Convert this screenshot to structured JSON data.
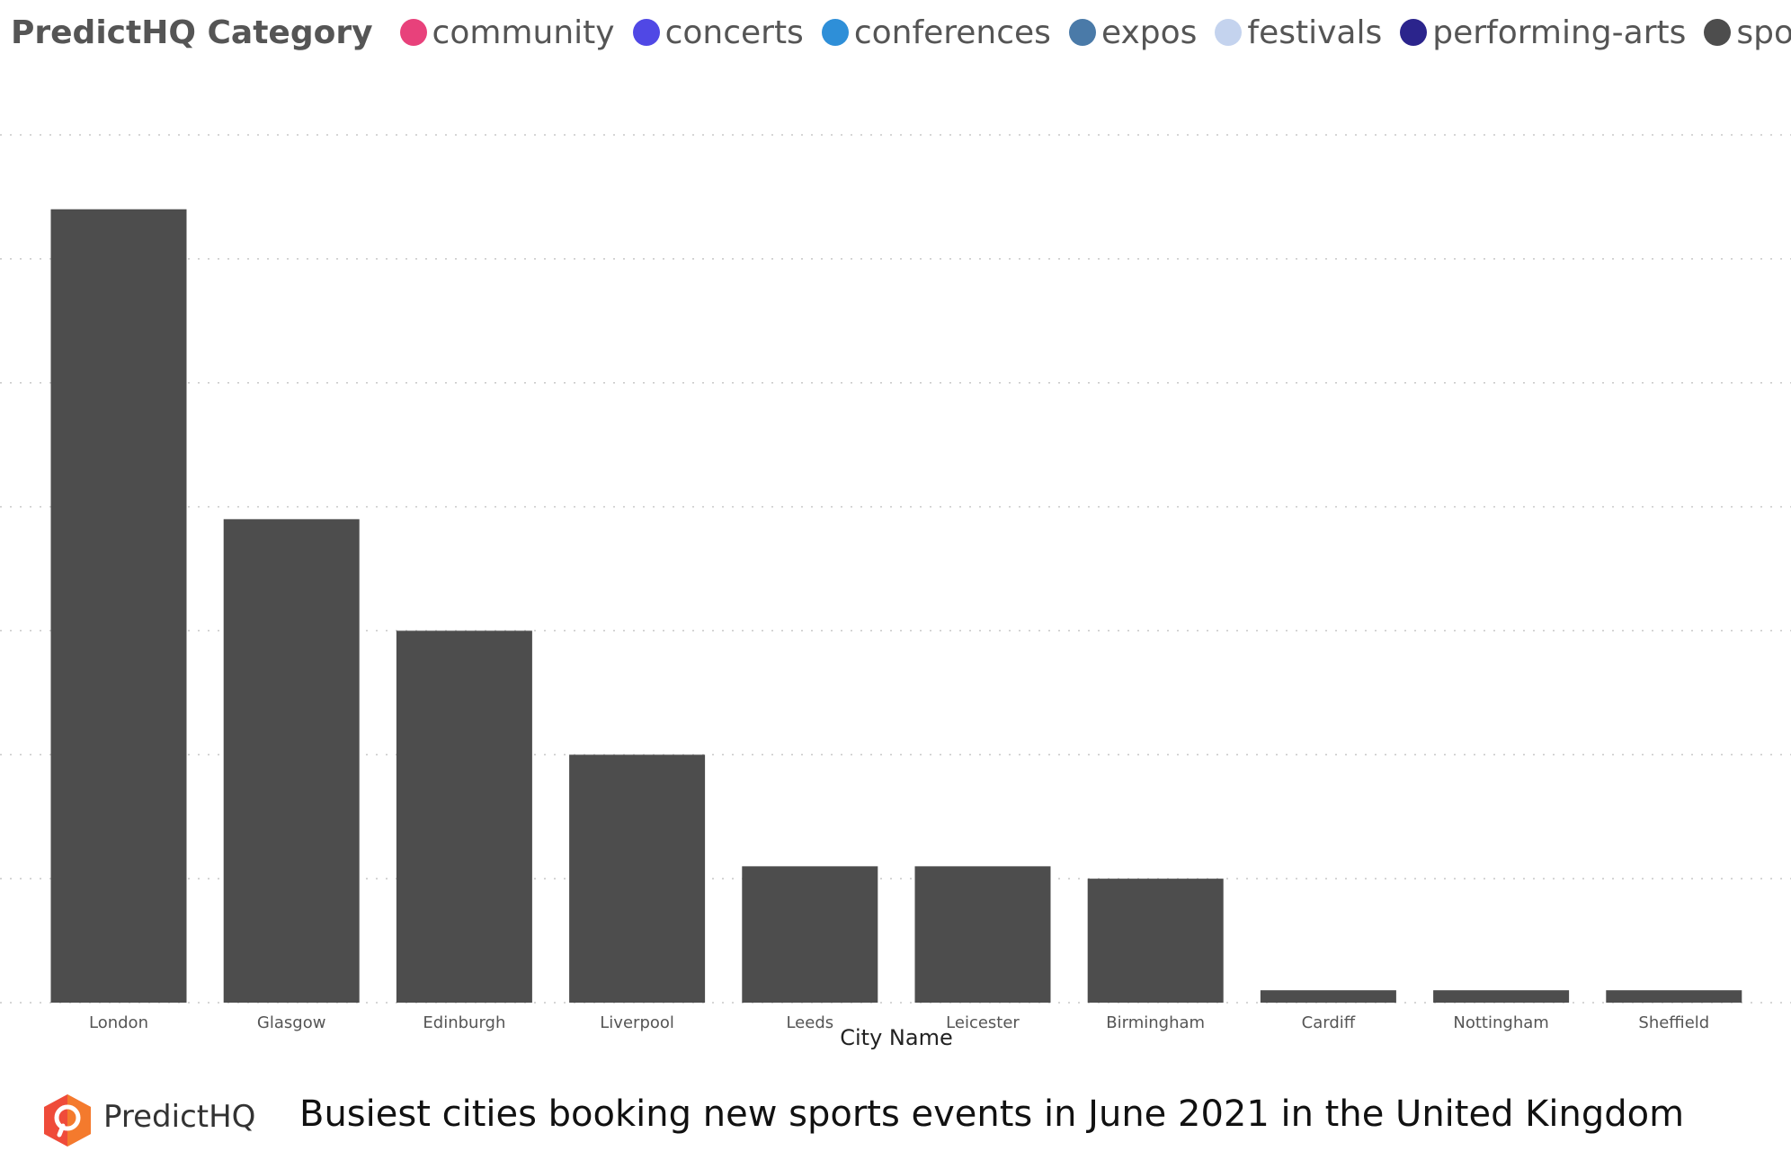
{
  "legend": {
    "title": "PredictHQ Category",
    "items": [
      {
        "label": "community",
        "color": "#e8417b"
      },
      {
        "label": "concerts",
        "color": "#5048e5"
      },
      {
        "label": "conferences",
        "color": "#2e8fd8"
      },
      {
        "label": "expos",
        "color": "#4a7aa8"
      },
      {
        "label": "festivals",
        "color": "#c4d3ee"
      },
      {
        "label": "performing-arts",
        "color": "#2b248c"
      },
      {
        "label": "sports",
        "color": "#4d4d4d"
      }
    ]
  },
  "chart_data": {
    "type": "bar",
    "categories": [
      "London",
      "Glasgow",
      "Edinburgh",
      "Liverpool",
      "Leeds",
      "Leicester",
      "Birmingham",
      "Cardiff",
      "Nottingham",
      "Sheffield"
    ],
    "series": [
      {
        "name": "sports",
        "values": [
          64,
          39,
          30,
          20,
          11,
          11,
          10,
          1,
          1,
          1
        ]
      }
    ],
    "xlabel": "City Name",
    "ylim": [
      0,
      70
    ],
    "grid": true,
    "legend_position": "top",
    "bar_color": "#4d4d4d"
  },
  "footer": {
    "brand": "PredictHQ",
    "caption": "Busiest cities booking new sports events in June 2021 in the United Kingdom"
  }
}
